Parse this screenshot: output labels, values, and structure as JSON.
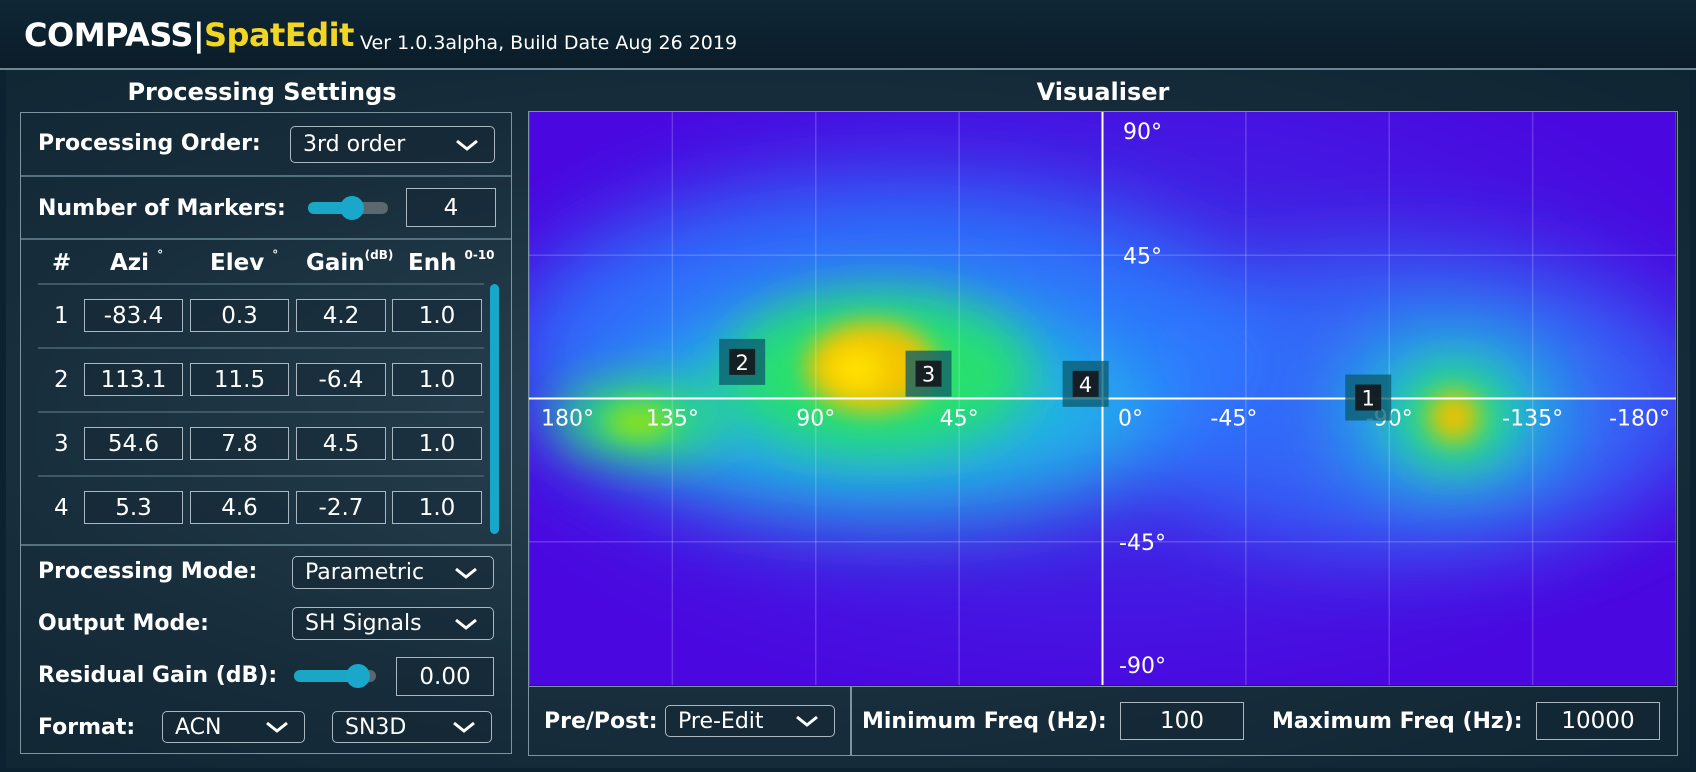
{
  "header": {
    "brand": "COMPASS|",
    "product": "SpatEdit",
    "version": "Ver 1.0.3alpha, Build Date Aug 26 2019"
  },
  "settings": {
    "title": "Processing Settings",
    "processing_order_label": "Processing Order:",
    "processing_order_value": "3rd order",
    "num_markers_label": "Number of Markers:",
    "num_markers_value": "4",
    "num_markers_slider_fraction": 0.55,
    "table": {
      "col_num": "#",
      "col_azi": "Azi",
      "col_azi_unit": "°",
      "col_elev": "Elev",
      "col_elev_unit": "°",
      "col_gain": "Gain",
      "col_gain_unit": "(dB)",
      "col_enh": "Enh",
      "col_enh_unit": "0-10",
      "rows": [
        {
          "num": "1",
          "azi": "-83.4",
          "elev": "0.3",
          "gain": "4.2",
          "enh": "1.0"
        },
        {
          "num": "2",
          "azi": "113.1",
          "elev": "11.5",
          "gain": "-6.4",
          "enh": "1.0"
        },
        {
          "num": "3",
          "azi": "54.6",
          "elev": "7.8",
          "gain": "4.5",
          "enh": "1.0"
        },
        {
          "num": "4",
          "azi": "5.3",
          "elev": "4.6",
          "gain": "-2.7",
          "enh": "1.0"
        }
      ]
    },
    "processing_mode_label": "Processing Mode:",
    "processing_mode_value": "Parametric",
    "output_mode_label": "Output Mode:",
    "output_mode_value": "SH Signals",
    "residual_gain_label": "Residual Gain (dB):",
    "residual_gain_value": "0.00",
    "residual_gain_slider_fraction": 0.78,
    "format_label": "Format:",
    "format_channel_order": "ACN",
    "format_normalisation": "SN3D"
  },
  "visualiser": {
    "title": "Visualiser",
    "azimuth_labels": [
      "180°",
      "135°",
      "90°",
      "45°",
      "0°",
      "-45°",
      "-90°",
      "-135°",
      "-180°"
    ],
    "elevation_labels": [
      "90°",
      "45°",
      "-45°",
      "-90°"
    ],
    "markers": [
      {
        "label": "1",
        "azi": -83.4,
        "elev": 0.3
      },
      {
        "label": "2",
        "azi": 113.1,
        "elev": 11.5
      },
      {
        "label": "3",
        "azi": 54.6,
        "elev": 7.8
      },
      {
        "label": "4",
        "azi": 5.3,
        "elev": 4.6
      }
    ],
    "pre_post_label": "Pre/Post:",
    "pre_post_value": "Pre-Edit",
    "min_freq_label": "Minimum Freq (Hz):",
    "min_freq_value": "100",
    "max_freq_label": "Maximum Freq (Hz):",
    "max_freq_value": "10000"
  },
  "colors": {
    "accent": "#f1d625",
    "slider": "#1aa6c5",
    "heatmap_low": "#4a07e0",
    "heatmap_high": "#f0d000"
  }
}
